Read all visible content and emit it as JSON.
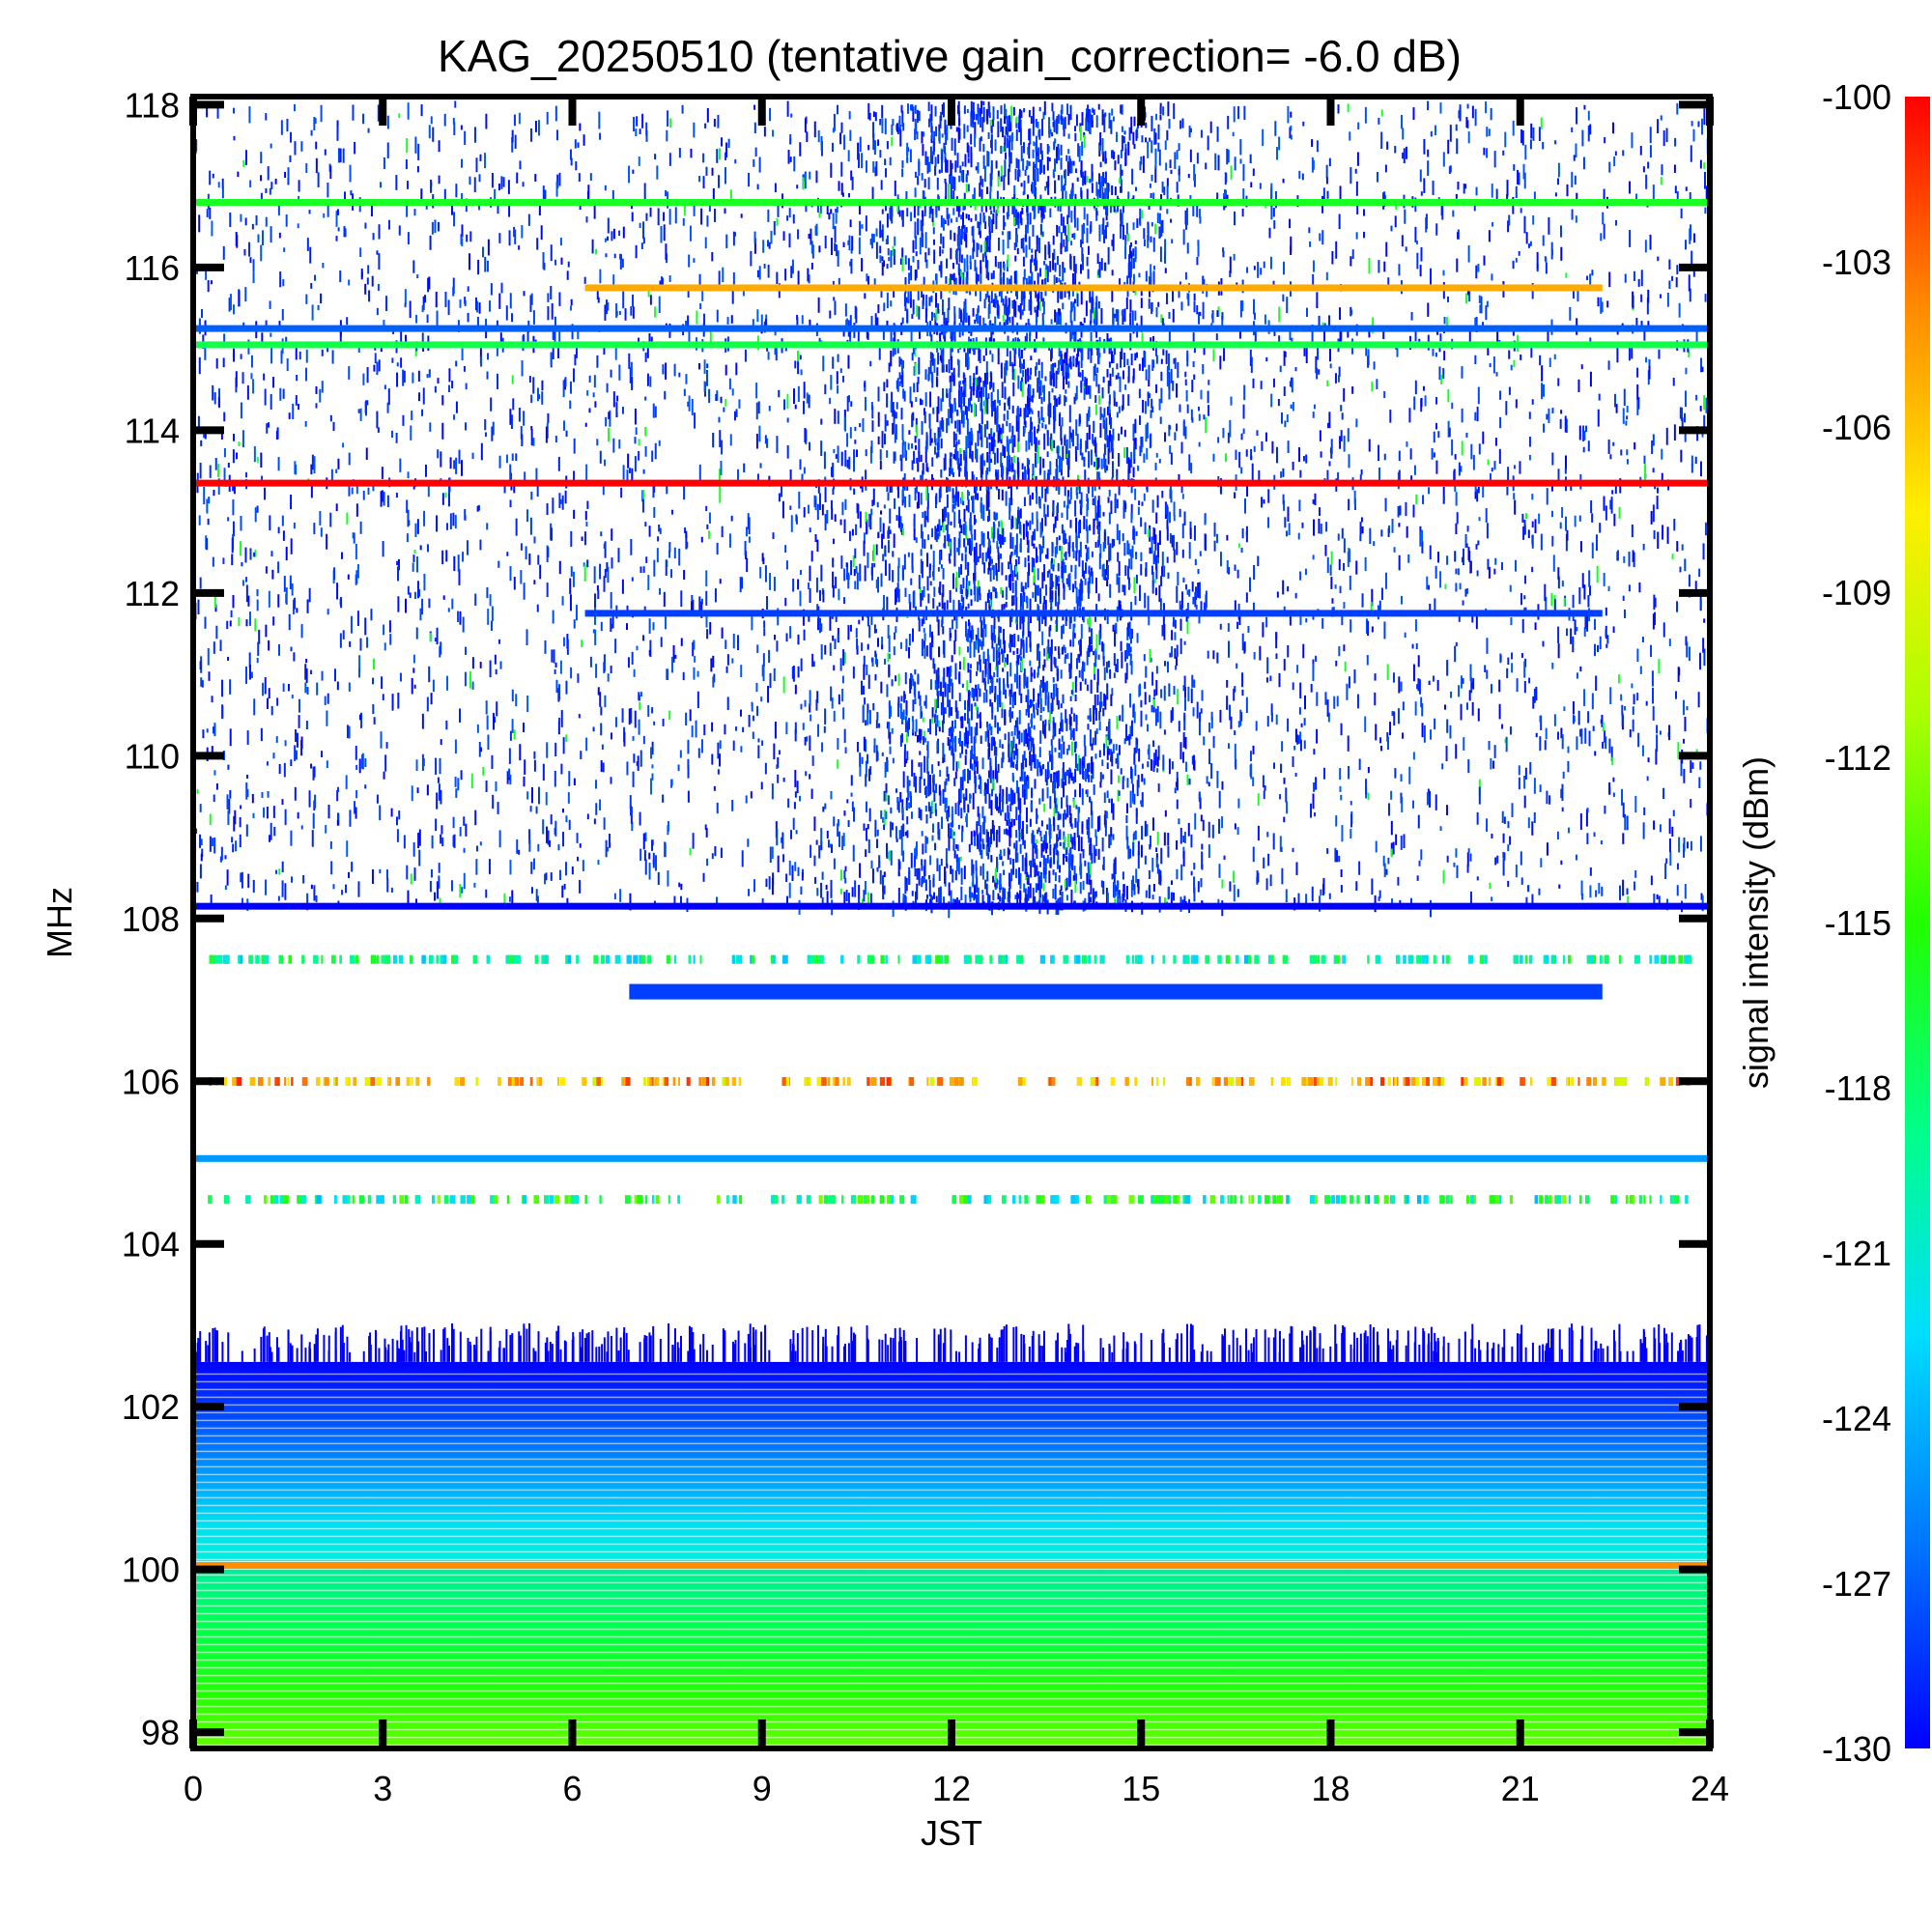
{
  "chart_data": {
    "type": "heatmap",
    "title": "KAG_20250510 (tentative gain_correction= -6.0 dB)",
    "xlabel": "JST",
    "ylabel": "MHz",
    "colorbar_label": "signal intensity (dBm)",
    "xlim": [
      0,
      24
    ],
    "ylim": [
      97.8,
      118.1
    ],
    "x_ticks": [
      "0",
      "3",
      "6",
      "9",
      "12",
      "15",
      "18",
      "21",
      "24"
    ],
    "y_ticks": [
      "98",
      "100",
      "102",
      "104",
      "106",
      "108",
      "110",
      "112",
      "114",
      "116",
      "118"
    ],
    "colorbar_range": [
      -130,
      -100
    ],
    "colorbar_ticks": [
      "-100",
      "-103",
      "-106",
      "-109",
      "-112",
      "-115",
      "-118",
      "-121",
      "-124",
      "-127",
      "-130"
    ],
    "colormap": [
      "#0000ff",
      "#0077ff",
      "#00ddff",
      "#00ff88",
      "#22ff00",
      "#aaff00",
      "#ffee00",
      "#ff8800",
      "#ff0000"
    ],
    "continuous_bands": [
      {
        "freq_mhz": 116.8,
        "start_jst": 0,
        "end_jst": 24,
        "dbm": -116
      },
      {
        "freq_mhz": 115.75,
        "start_jst": 6.2,
        "end_jst": 22.3,
        "dbm": -105
      },
      {
        "freq_mhz": 115.25,
        "start_jst": 0,
        "end_jst": 24,
        "dbm": -127
      },
      {
        "freq_mhz": 115.05,
        "start_jst": 0,
        "end_jst": 24,
        "dbm": -117
      },
      {
        "freq_mhz": 113.35,
        "start_jst": 0,
        "end_jst": 24,
        "dbm": -100
      },
      {
        "freq_mhz": 111.75,
        "start_jst": 6.2,
        "end_jst": 22.3,
        "dbm": -128
      },
      {
        "freq_mhz": 108.15,
        "start_jst": 0,
        "end_jst": 24,
        "dbm": -130
      },
      {
        "freq_mhz": 107.1,
        "start_jst": 6.9,
        "end_jst": 22.3,
        "dbm": -128
      },
      {
        "freq_mhz": 105.05,
        "start_jst": 0,
        "end_jst": 24,
        "dbm": -125
      },
      {
        "freq_mhz": 100.05,
        "start_jst": 0,
        "end_jst": 24,
        "dbm": -104
      }
    ]
  }
}
